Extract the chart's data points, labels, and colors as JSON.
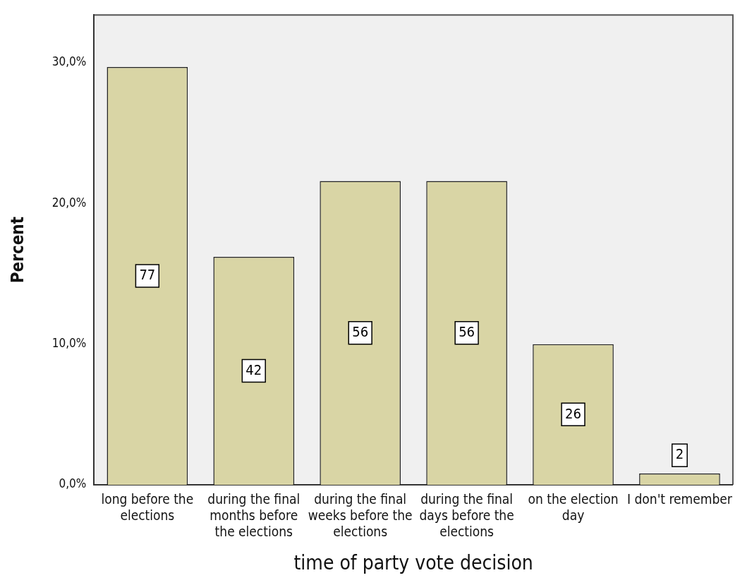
{
  "chart_data": {
    "type": "bar",
    "xlabel": "time of party vote decision",
    "ylabel": "Percent",
    "categories": [
      "long before the elections",
      "during the final months before the elections",
      "during the final weeks before the elections",
      "during the final days before the elections",
      "on the election day",
      "I don't remember"
    ],
    "values": [
      29.7,
      16.2,
      21.6,
      21.6,
      10.0,
      0.8
    ],
    "annotations": [
      {
        "text": "77",
        "x": "long before the elections",
        "y": 14.85
      },
      {
        "text": "42",
        "x": "during the final months before the elections",
        "y": 8.1
      },
      {
        "text": "56",
        "x": "during the final weeks before the elections",
        "y": 10.8
      },
      {
        "text": "56",
        "x": "during the final days before the elections",
        "y": 10.8
      },
      {
        "text": "26",
        "x": "on the election day",
        "y": 5
      },
      {
        "text": "2",
        "x": "I don't remember",
        "y": 2.1
      }
    ],
    "color": "#d9d5a5",
    "ylim": [
      0,
      33.4
    ],
    "yticks": [
      {
        "value": 0,
        "label": "0,0%"
      },
      {
        "value": 10,
        "label": "10,0%"
      },
      {
        "value": 20,
        "label": "20,0%"
      },
      {
        "value": 30,
        "label": "30,0%"
      }
    ],
    "grid": false,
    "legend": false
  }
}
